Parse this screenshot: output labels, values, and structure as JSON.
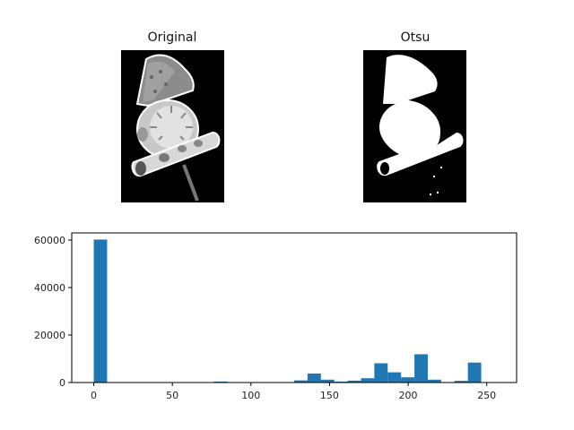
{
  "panels": {
    "original_title": "Original",
    "otsu_title": "Otsu"
  },
  "colors": {
    "bar": "#1f77b4",
    "axis": "#000000",
    "image_bg": "#000000"
  },
  "chart_data": {
    "type": "bar",
    "title": "",
    "xlabel": "",
    "ylabel": "",
    "xlim": [
      -14,
      269
    ],
    "ylim": [
      0,
      63000
    ],
    "xticks": [
      0,
      50,
      100,
      150,
      200,
      250
    ],
    "yticks": [
      0,
      20000,
      40000,
      60000
    ],
    "bin_width": 8.5,
    "bins": [
      {
        "x": 4.25,
        "value": 60200
      },
      {
        "x": 12.75,
        "value": 0
      },
      {
        "x": 21.25,
        "value": 0
      },
      {
        "x": 29.75,
        "value": 0
      },
      {
        "x": 38.25,
        "value": 0
      },
      {
        "x": 46.75,
        "value": 0
      },
      {
        "x": 55.25,
        "value": 0
      },
      {
        "x": 63.75,
        "value": 0
      },
      {
        "x": 72.25,
        "value": 100
      },
      {
        "x": 80.75,
        "value": 400
      },
      {
        "x": 89.25,
        "value": 200
      },
      {
        "x": 97.75,
        "value": 100
      },
      {
        "x": 106.25,
        "value": 100
      },
      {
        "x": 114.75,
        "value": 100
      },
      {
        "x": 123.25,
        "value": 200
      },
      {
        "x": 131.75,
        "value": 900
      },
      {
        "x": 140.25,
        "value": 3800
      },
      {
        "x": 148.75,
        "value": 1200
      },
      {
        "x": 157.25,
        "value": 400
      },
      {
        "x": 165.75,
        "value": 800
      },
      {
        "x": 174.25,
        "value": 1800
      },
      {
        "x": 182.75,
        "value": 8100
      },
      {
        "x": 191.25,
        "value": 4300
      },
      {
        "x": 199.75,
        "value": 2200
      },
      {
        "x": 208.25,
        "value": 11900
      },
      {
        "x": 216.75,
        "value": 1200
      },
      {
        "x": 225.25,
        "value": 200
      },
      {
        "x": 233.75,
        "value": 700
      },
      {
        "x": 242.25,
        "value": 8400
      },
      {
        "x": 250.75,
        "value": 0
      }
    ]
  }
}
